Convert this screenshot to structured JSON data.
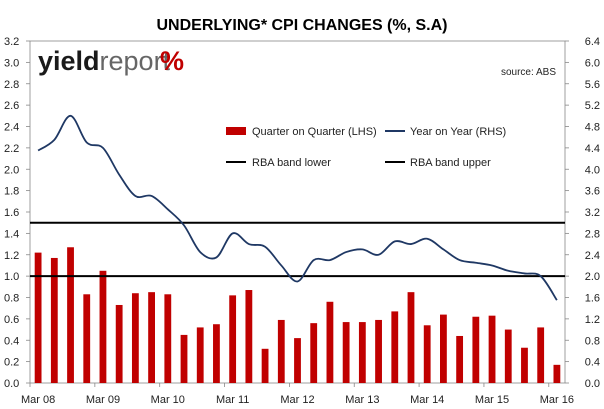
{
  "chart_data": {
    "type": "bar",
    "title": "UNDERLYING* CPI CHANGES (%, S.A)",
    "source": "source: ABS",
    "logo": {
      "part1": "yield",
      "part2": "report",
      "part3": "%"
    },
    "colors": {
      "bars": "#c00000",
      "line": "#1f3864",
      "bands": "#000000"
    },
    "legend": {
      "placement": "inside-top-right",
      "entries": [
        "Quarter on Quarter (LHS)",
        "Year on Year (RHS)",
        "RBA band lower",
        "RBA band upper"
      ]
    },
    "left_axis": {
      "min": 0,
      "max": 3.2,
      "step": 0.2,
      "ticks": [
        "0.0",
        "0.2",
        "0.4",
        "0.6",
        "0.8",
        "1.0",
        "1.2",
        "1.4",
        "1.6",
        "1.8",
        "2.0",
        "2.2",
        "2.4",
        "2.6",
        "2.8",
        "3.0",
        "3.2"
      ]
    },
    "right_axis": {
      "min": 0,
      "max": 6.4,
      "step": 0.4,
      "ticks": [
        "0.0",
        "0.4",
        "0.8",
        "1.2",
        "1.6",
        "2.0",
        "2.4",
        "2.8",
        "3.2",
        "3.6",
        "4.0",
        "4.4",
        "4.8",
        "5.2",
        "5.6",
        "6.0",
        "6.4"
      ]
    },
    "x_labels": [
      "Mar 08",
      "Mar 09",
      "Mar 10",
      "Mar 11",
      "Mar 12",
      "Mar 13",
      "Mar 14",
      "Mar 15",
      "Mar 16"
    ],
    "quarters": [
      "Mar 08",
      "Jun 08",
      "Sep 08",
      "Dec 08",
      "Mar 09",
      "Jun 09",
      "Sep 09",
      "Dec 09",
      "Mar 10",
      "Jun 10",
      "Sep 10",
      "Dec 10",
      "Mar 11",
      "Jun 11",
      "Sep 11",
      "Dec 11",
      "Mar 12",
      "Jun 12",
      "Sep 12",
      "Dec 12",
      "Mar 13",
      "Jun 13",
      "Sep 13",
      "Dec 13",
      "Mar 14",
      "Jun 14",
      "Sep 14",
      "Dec 14",
      "Mar 15",
      "Jun 15",
      "Sep 15",
      "Dec 15",
      "Mar 16"
    ],
    "series": [
      {
        "name": "Quarter on Quarter (LHS)",
        "type": "bar",
        "axis": "left",
        "values": [
          1.22,
          1.17,
          1.27,
          0.83,
          1.05,
          0.73,
          0.84,
          0.85,
          0.83,
          0.45,
          0.52,
          0.55,
          0.82,
          0.87,
          0.32,
          0.59,
          0.42,
          0.56,
          0.76,
          0.57,
          0.57,
          0.59,
          0.67,
          0.85,
          0.54,
          0.64,
          0.44,
          0.62,
          0.63,
          0.5,
          0.33,
          0.52,
          0.17
        ]
      },
      {
        "name": "Year on Year (RHS)",
        "type": "line",
        "axis": "right",
        "values": [
          4.35,
          4.55,
          5.0,
          4.5,
          4.4,
          3.9,
          3.5,
          3.5,
          3.25,
          2.95,
          2.45,
          2.35,
          2.8,
          2.6,
          2.55,
          2.2,
          1.9,
          2.3,
          2.3,
          2.45,
          2.5,
          2.4,
          2.65,
          2.6,
          2.7,
          2.5,
          2.3,
          2.25,
          2.2,
          2.1,
          2.05,
          2.0,
          1.55
        ]
      },
      {
        "name": "RBA band lower",
        "type": "hline",
        "axis": "left",
        "value": 1.0
      },
      {
        "name": "RBA band upper",
        "type": "hline",
        "axis": "left",
        "value": 1.5
      }
    ]
  }
}
